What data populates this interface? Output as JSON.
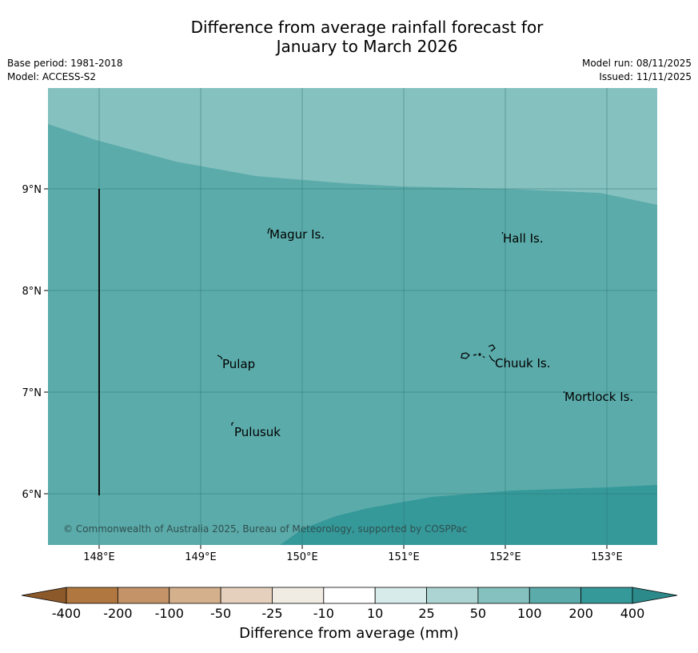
{
  "title_line1": "Difference from average rainfall forecast for",
  "title_line2": "January to March 2026",
  "base_period": "Base period: 1981-2018",
  "model": "Model: ACCESS-S2",
  "model_run": "Model run: 08/11/2025",
  "issued": "Issued: 11/11/2025",
  "copyright": "© Commonwealth of Australia 2025, Bureau of Meteorology, supported by COSPPac",
  "axes": {
    "x_ticks": [
      "148°E",
      "149°E",
      "150°E",
      "151°E",
      "152°E",
      "153°E"
    ],
    "y_ticks": [
      "9°N",
      "8°N",
      "7°N",
      "6°N"
    ]
  },
  "places": [
    {
      "name": "Magur Is."
    },
    {
      "name": "Hall Is."
    },
    {
      "name": "Pulap"
    },
    {
      "name": "Chuuk Is."
    },
    {
      "name": "Mortlock Is."
    },
    {
      "name": "Pulusuk"
    }
  ],
  "colorbar": {
    "title": "Difference from average (mm)",
    "labels": [
      "-400",
      "-200",
      "-100",
      "-50",
      "-25",
      "-10",
      "10",
      "25",
      "50",
      "100",
      "200",
      "400"
    ],
    "colors": [
      "#8c5a2a",
      "#b07840",
      "#c49468",
      "#d4b08c",
      "#e4d0bc",
      "#f0ece4",
      "#ffffff",
      "#d6ebea",
      "#acd4d3",
      "#84c1bf",
      "#5babaa",
      "#35999a",
      "#2c8a8a"
    ]
  },
  "map_colors": {
    "band_50_100": "#84c1bf",
    "band_100_200": "#5babaa",
    "band_200_400": "#35999a"
  }
}
